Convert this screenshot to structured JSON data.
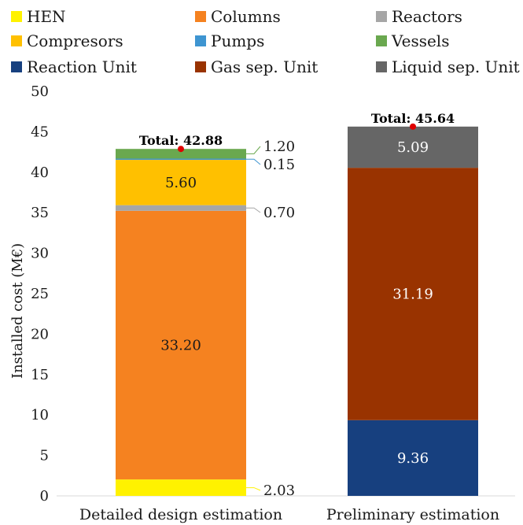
{
  "chart_data": {
    "type": "bar",
    "stacked": true,
    "ylabel": "Installed cost (M€)",
    "ylim": [
      0,
      50
    ],
    "yticks": [
      0,
      5,
      10,
      15,
      20,
      25,
      30,
      35,
      40,
      45,
      50
    ],
    "grid": false,
    "legend_position": "top",
    "categories": [
      "Detailed design estimation",
      "Preliminary estimation"
    ],
    "legend": [
      {
        "name": "HEN",
        "color": "#FFF200"
      },
      {
        "name": "Columns",
        "color": "#F58220"
      },
      {
        "name": "Reactors",
        "color": "#A6A6A6"
      },
      {
        "name": "Compresors",
        "color": "#FFC000"
      },
      {
        "name": "Pumps",
        "color": "#3E95D1"
      },
      {
        "name": "Vessels",
        "color": "#6AA84F"
      },
      {
        "name": "Reaction Unit",
        "color": "#17407F"
      },
      {
        "name": "Gas sep. Unit",
        "color": "#993300"
      },
      {
        "name": "Liquid sep. Unit",
        "color": "#666666"
      }
    ],
    "stacks": [
      {
        "category": "Detailed design estimation",
        "total_label": "Total: 42.88",
        "total": 42.88,
        "segments": [
          {
            "name": "HEN",
            "value": 2.03,
            "label": "2.03",
            "label_mode": "callout"
          },
          {
            "name": "Columns",
            "value": 33.2,
            "label": "33.20",
            "label_mode": "inside"
          },
          {
            "name": "Reactors",
            "value": 0.7,
            "label": "0.70",
            "label_mode": "callout"
          },
          {
            "name": "Compresors",
            "value": 5.6,
            "label": "5.60",
            "label_mode": "inside"
          },
          {
            "name": "Pumps",
            "value": 0.15,
            "label": "0.15",
            "label_mode": "callout"
          },
          {
            "name": "Vessels",
            "value": 1.2,
            "label": "1.20",
            "label_mode": "callout"
          }
        ]
      },
      {
        "category": "Preliminary estimation",
        "total_label": "Total: 45.64",
        "total": 45.64,
        "segments": [
          {
            "name": "Reaction Unit",
            "value": 9.36,
            "label": "9.36",
            "label_mode": "inside"
          },
          {
            "name": "Gas sep. Unit",
            "value": 31.19,
            "label": "31.19",
            "label_mode": "inside"
          },
          {
            "name": "Liquid sep. Unit",
            "value": 5.09,
            "label": "5.09",
            "label_mode": "inside"
          }
        ]
      }
    ],
    "label_colors": {
      "Columns": "#1a1a1a",
      "Compresors": "#1a1a1a",
      "Reaction Unit": "#ffffff",
      "Gas sep. Unit": "#ffffff",
      "Liquid sep. Unit": "#ffffff"
    },
    "total_marker_color": "#E00000"
  }
}
